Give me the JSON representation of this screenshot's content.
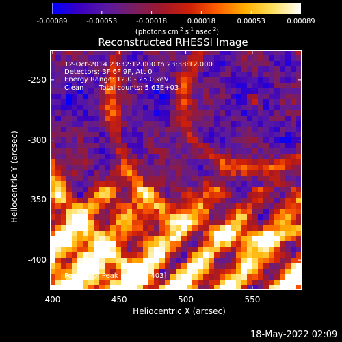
{
  "chart_data": {
    "type": "heatmap",
    "title": "Reconstructed RHESSI Image",
    "xlabel": "Heliocentric X (arcsec)",
    "ylabel": "Heliocentric Y (arcsec)",
    "xlim": [
      398,
      587
    ],
    "ylim": [
      -425,
      -225
    ],
    "x_ticks": [
      "400",
      "450",
      "500",
      "550"
    ],
    "y_ticks": [
      "-250",
      "-300",
      "-350",
      "-400"
    ],
    "colorbar": {
      "ticks": [
        "-0.00089",
        "-0.00053",
        "-0.00018",
        "0.00018",
        "0.00053",
        "0.00089"
      ],
      "units_text": "(photons cm",
      "units_exp1": "-2",
      "units_mid": " s",
      "units_exp2": "-1",
      "units_mid2": " asec",
      "units_exp3": "-2",
      "units_end": ")",
      "range": [
        -0.00089,
        0.00089
      ],
      "colormap": [
        "#0000ff",
        "#3a00c0",
        "#5a1aa0",
        "#7a1e60",
        "#a0182a",
        "#d02008",
        "#ff6000",
        "#ffb000",
        "#ffe060",
        "#ffffff"
      ]
    },
    "annotations": {
      "time_range": "12-Oct-2014 23:32:12.000 to 23:38:12.000",
      "detectors": "Detectors: 3F 6F 9F, Att 0",
      "energy": "Energy Range: 12.0 - 25.0 keV",
      "clean_label": "Clean",
      "total_counts": "Total counts: 5.63E+03",
      "peak": "Position of Peak = [483, -403]"
    },
    "grid": false
  },
  "footer": {
    "date_stamp": "18-May-2022 02:09"
  }
}
